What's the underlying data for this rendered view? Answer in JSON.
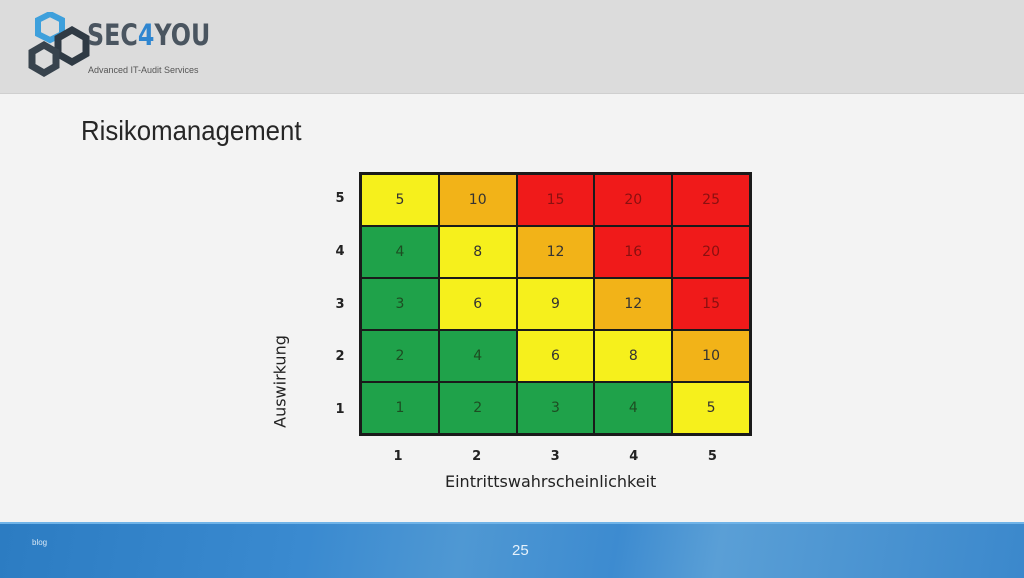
{
  "header": {
    "brand_prefix": "SEC",
    "brand_accent": "4",
    "brand_suffix": "YOU",
    "tagline": "Advanced IT-Audit Services",
    "logo_icon": "hexagon-nuts-icon"
  },
  "slide": {
    "title": "Risikomanagement",
    "page_number": "25",
    "footer_label": "blog"
  },
  "colors": {
    "green": "#1fa24a",
    "yellow": "#f6f01c",
    "orange": "#f2b318",
    "red": "#f01a1a",
    "footer_blue": "#3a8ad0"
  },
  "chart_data": {
    "type": "heatmap",
    "title": "Risikomanagement",
    "xlabel": "Eintrittswahrscheinlichkeit",
    "ylabel": "Auswirkung",
    "x": [
      "1",
      "2",
      "3",
      "4",
      "5"
    ],
    "y": [
      "5",
      "4",
      "3",
      "2",
      "1"
    ],
    "values": [
      [
        5,
        10,
        15,
        20,
        25
      ],
      [
        4,
        8,
        12,
        16,
        20
      ],
      [
        3,
        6,
        9,
        12,
        15
      ],
      [
        2,
        4,
        6,
        8,
        10
      ],
      [
        1,
        2,
        3,
        4,
        5
      ]
    ],
    "cell_colors": [
      [
        "yellow",
        "orange",
        "red",
        "red",
        "red"
      ],
      [
        "green",
        "yellow",
        "orange",
        "red",
        "red"
      ],
      [
        "green",
        "yellow",
        "yellow",
        "orange",
        "red"
      ],
      [
        "green",
        "green",
        "yellow",
        "yellow",
        "orange"
      ],
      [
        "green",
        "green",
        "green",
        "green",
        "yellow"
      ]
    ],
    "legend": "none",
    "grid": true
  }
}
